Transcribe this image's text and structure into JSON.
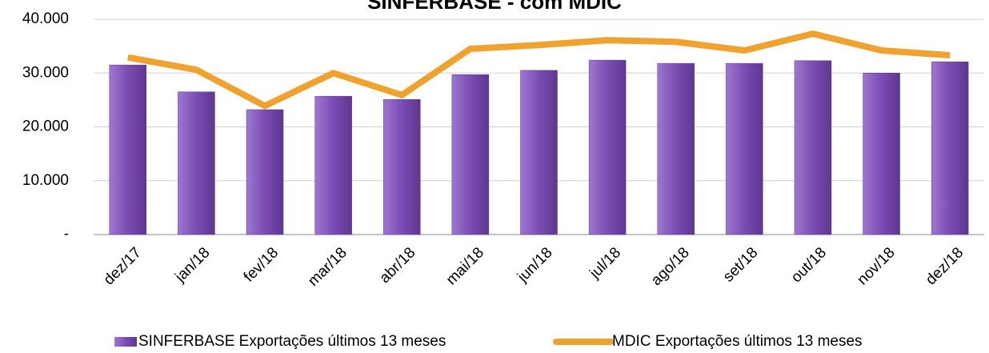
{
  "chart_data": {
    "type": "bar_line",
    "title": "SINFERBASE - com MDIC",
    "categories": [
      "dez/17",
      "jan/18",
      "fev/18",
      "mar/18",
      "abr/18",
      "mai/18",
      "jun/18",
      "jul/18",
      "ago/18",
      "set/18",
      "out/18",
      "nov/18",
      "dez/18"
    ],
    "series": [
      {
        "name": "SINFERBASE Exportações últimos 13 meses",
        "type": "bar",
        "color": "#7b4cb3",
        "values": [
          31500,
          26500,
          23200,
          25700,
          25100,
          29700,
          30500,
          32400,
          31800,
          31800,
          32300,
          30000,
          32100
        ]
      },
      {
        "name": "MDIC Exportações últimos 13 meses",
        "type": "line",
        "color": "#f0a22e",
        "values": [
          32900,
          30600,
          23900,
          30000,
          25900,
          34500,
          35200,
          36100,
          35800,
          34200,
          37300,
          34200,
          33300
        ]
      }
    ],
    "ylim": [
      0,
      40000
    ],
    "yticks": [
      {
        "value": 0,
        "label": "-"
      },
      {
        "value": 10000,
        "label": "10.000"
      },
      {
        "value": 20000,
        "label": "20.000"
      },
      {
        "value": 30000,
        "label": "30.000"
      },
      {
        "value": 40000,
        "label": "40.000"
      }
    ],
    "grid": true,
    "legend": "bottom"
  }
}
